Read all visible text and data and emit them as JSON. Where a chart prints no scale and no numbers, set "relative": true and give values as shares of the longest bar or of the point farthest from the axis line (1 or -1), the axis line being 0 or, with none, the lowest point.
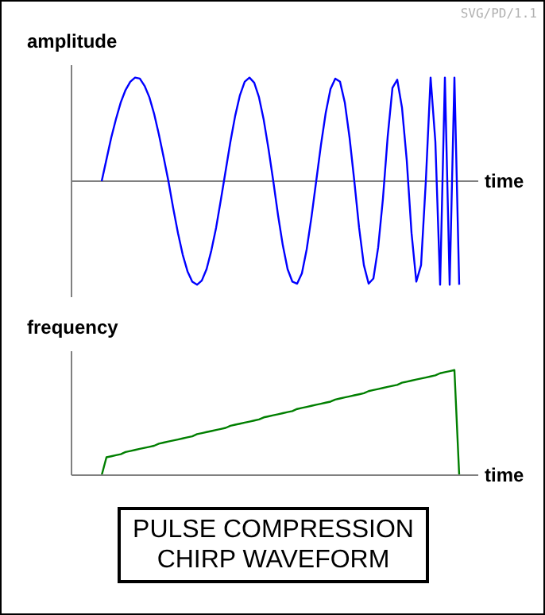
{
  "chart_data": [
    {
      "type": "line",
      "relative": true,
      "ylabel": "amplitude",
      "xlabel": "time",
      "annotations": [
        "SVG/PD/1.1"
      ],
      "marker": "none",
      "categories": [
        null,
        null,
        null,
        null,
        null,
        null,
        null,
        null,
        null,
        null,
        null,
        null,
        null,
        null,
        null,
        null,
        null,
        null,
        null,
        null,
        null,
        null,
        null,
        null,
        null,
        null,
        null,
        null,
        null,
        null,
        null,
        null,
        null,
        null,
        null,
        null,
        null,
        null,
        null,
        null,
        null,
        null,
        null,
        null,
        null,
        null,
        null,
        null,
        null,
        null,
        null,
        null,
        null,
        null,
        null,
        null,
        null,
        null,
        null,
        null,
        null,
        null,
        null,
        null,
        null,
        null,
        null,
        null,
        null,
        null,
        null,
        null,
        null,
        null,
        null,
        null
      ],
      "series": [
        {
          "color": "#0000ff",
          "values": [
            0,
            0.21,
            0.42,
            0.6,
            0.76,
            0.88,
            0.96,
            1,
            0.99,
            0.92,
            0.81,
            0.65,
            0.45,
            0.23,
            0,
            -0.26,
            -0.5,
            -0.71,
            -0.87,
            -0.97,
            -1,
            -0.96,
            -0.85,
            -0.67,
            -0.45,
            -0.18,
            0.1,
            0.38,
            0.63,
            0.83,
            0.96,
            1,
            0.95,
            0.81,
            0.59,
            0.31,
            0,
            -0.33,
            -0.62,
            -0.85,
            -0.97,
            -0.99,
            -0.89,
            -0.66,
            -0.35,
            0,
            0.35,
            0.66,
            0.89,
            0.99,
            0.96,
            0.76,
            0.42,
            0,
            -0.45,
            -0.81,
            -0.99,
            -0.94,
            -0.64,
            -0.17,
            0.43,
            0.9,
            0.98,
            0.71,
            0.2,
            -0.5,
            -0.97,
            -0.81,
            0,
            1,
            0.38,
            -1,
            1,
            -1,
            1,
            -1
          ]
        }
      ]
    },
    {
      "type": "line",
      "relative": true,
      "ylabel": "frequency",
      "xlabel": "time",
      "title": "PULSE COMPRESSION\nCHIRP WAVEFORM",
      "marker": "none",
      "categories": [
        null,
        null,
        null,
        null,
        null,
        null,
        null,
        null,
        null,
        null,
        null,
        null,
        null,
        null,
        null,
        null,
        null,
        null,
        null,
        null,
        null,
        null,
        null,
        null,
        null,
        null,
        null,
        null,
        null,
        null,
        null,
        null,
        null,
        null,
        null,
        null,
        null,
        null,
        null,
        null,
        null,
        null,
        null,
        null,
        null,
        null,
        null,
        null,
        null,
        null,
        null,
        null,
        null,
        null,
        null,
        null,
        null,
        null,
        null,
        null,
        null,
        null,
        null,
        null,
        null,
        null,
        null,
        null,
        null,
        null,
        null,
        null,
        null,
        null,
        null,
        null
      ],
      "series": [
        {
          "color": "#007f00",
          "values": [
            0,
            0.17,
            0.18,
            0.19,
            0.2,
            0.22,
            0.23,
            0.24,
            0.25,
            0.26,
            0.27,
            0.28,
            0.3,
            0.31,
            0.32,
            0.33,
            0.34,
            0.35,
            0.36,
            0.37,
            0.39,
            0.4,
            0.41,
            0.42,
            0.43,
            0.44,
            0.45,
            0.47,
            0.48,
            0.49,
            0.5,
            0.51,
            0.52,
            0.53,
            0.55,
            0.56,
            0.57,
            0.58,
            0.59,
            0.6,
            0.61,
            0.63,
            0.64,
            0.65,
            0.66,
            0.67,
            0.68,
            0.69,
            0.7,
            0.72,
            0.73,
            0.74,
            0.75,
            0.76,
            0.77,
            0.78,
            0.8,
            0.81,
            0.82,
            0.83,
            0.84,
            0.85,
            0.86,
            0.88,
            0.89,
            0.9,
            0.91,
            0.92,
            0.93,
            0.94,
            0.95,
            0.97,
            0.98,
            0.99,
            1,
            0
          ]
        }
      ]
    }
  ]
}
